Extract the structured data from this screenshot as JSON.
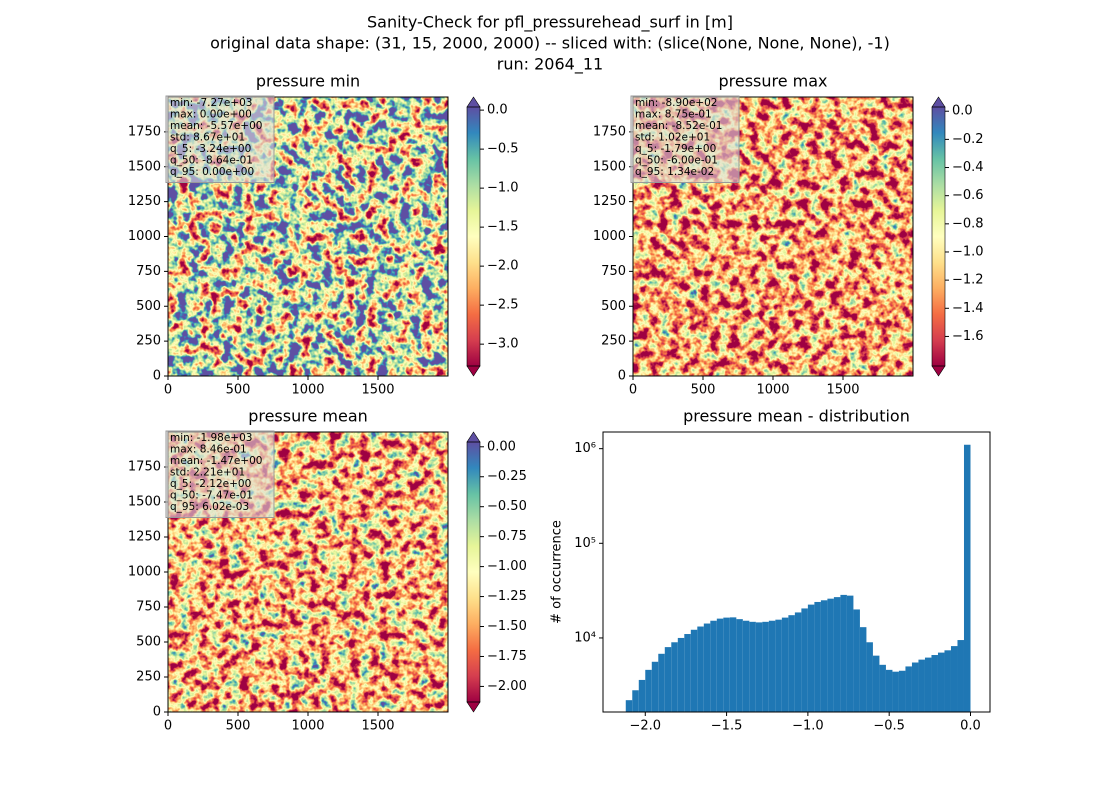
{
  "figure_title": [
    "Sanity-Check for pfl_pressurehead_surf in [m]",
    "original data shape: (31, 15, 2000, 2000) -- sliced with: (slice(None, None, None), -1)",
    "run: 2064_11"
  ],
  "chart_data": [
    {
      "type": "heatmap",
      "title": "pressure min",
      "xlim": [
        0,
        2000
      ],
      "ylim": [
        0,
        2000
      ],
      "xticks": [
        0,
        500,
        1000,
        1500
      ],
      "yticks": [
        0,
        250,
        500,
        750,
        1000,
        1250,
        1500,
        1750
      ],
      "cmap": "Spectral",
      "colorbar": {
        "lim": [
          -3.28,
          0.04
        ],
        "extend": "both",
        "ticks": [
          {
            "value": -3,
            "label": "−3.0"
          },
          {
            "value": -2.5,
            "label": "−2.5"
          },
          {
            "value": -2,
            "label": "−2.0"
          },
          {
            "value": -1.5,
            "label": "−1.5"
          },
          {
            "value": -1,
            "label": "−1.0"
          },
          {
            "value": -0.5,
            "label": "−0.5"
          },
          {
            "value": 0,
            "label": "0.0"
          }
        ]
      },
      "stats": [
        "min: -7.27e+03",
        "max: 0.00e+00",
        "mean: -5.57e+00",
        "std: 8.67e+01",
        "q_5: -3.24e+00",
        "q_50: -8.64e-01",
        "q_95: 0.00e+00"
      ]
    },
    {
      "type": "heatmap",
      "title": "pressure max",
      "xlim": [
        0,
        2000
      ],
      "ylim": [
        0,
        2000
      ],
      "xticks": [
        0,
        500,
        1000,
        1500
      ],
      "yticks": [
        0,
        250,
        500,
        750,
        1000,
        1250,
        1500,
        1750
      ],
      "cmap": "Spectral",
      "colorbar": {
        "lim": [
          -1.81,
          0.03
        ],
        "extend": "both",
        "ticks": [
          {
            "value": -1.6,
            "label": "−1.6"
          },
          {
            "value": -1.4,
            "label": "−1.4"
          },
          {
            "value": -1.2,
            "label": "−1.2"
          },
          {
            "value": -1,
            "label": "−1.0"
          },
          {
            "value": -0.8,
            "label": "−0.8"
          },
          {
            "value": -0.6,
            "label": "−0.6"
          },
          {
            "value": -0.4,
            "label": "−0.4"
          },
          {
            "value": -0.2,
            "label": "−0.2"
          },
          {
            "value": 0,
            "label": "0.0"
          }
        ]
      },
      "stats": [
        "min: -8.90e+02",
        "max: 8.75e-01",
        "mean: -8.52e-01",
        "std: 1.02e+01",
        "q_5: -1.79e+00",
        "q_50: -6.00e-01",
        "q_95: 1.34e-02"
      ]
    },
    {
      "type": "heatmap",
      "title": "pressure mean",
      "xlim": [
        0,
        2000
      ],
      "ylim": [
        0,
        2000
      ],
      "xticks": [
        0,
        500,
        1000,
        1500
      ],
      "yticks": [
        0,
        250,
        500,
        750,
        1000,
        1250,
        1500,
        1750
      ],
      "cmap": "Spectral",
      "colorbar": {
        "lim": [
          -2.13,
          0.04
        ],
        "extend": "both",
        "ticks": [
          {
            "value": -2,
            "label": "−2.00"
          },
          {
            "value": -1.75,
            "label": "−1.75"
          },
          {
            "value": -1.5,
            "label": "−1.50"
          },
          {
            "value": -1.25,
            "label": "−1.25"
          },
          {
            "value": -1,
            "label": "−1.00"
          },
          {
            "value": -0.75,
            "label": "−0.75"
          },
          {
            "value": -0.5,
            "label": "−0.50"
          },
          {
            "value": -0.25,
            "label": "−0.25"
          },
          {
            "value": 0,
            "label": "0.00"
          }
        ]
      },
      "stats": [
        "min: -1.98e+03",
        "max: 8.46e-01",
        "mean: -1.47e+00",
        "std: 2.21e+01",
        "q_5: -2.12e+00",
        "q_50: -7.47e-01",
        "q_95: 6.02e-03"
      ]
    },
    {
      "type": "histogram",
      "title": "pressure mean - distribution",
      "ylabel": "# of occurrence",
      "color": "#1f77b4",
      "log_y": true,
      "xlim": [
        -2.26,
        0.12
      ],
      "ylim": [
        1650,
        1500000
      ],
      "xticks": [
        {
          "value": -2,
          "label": "−2.0"
        },
        {
          "value": -1.5,
          "label": "−1.5"
        },
        {
          "value": -1,
          "label": "−1.0"
        },
        {
          "value": -0.5,
          "label": "−0.5"
        },
        {
          "value": 0,
          "label": "0.0"
        }
      ],
      "yticks": [
        {
          "value": 10000,
          "label": "10⁴"
        },
        {
          "value": 100000,
          "label": "10⁵"
        },
        {
          "value": 1000000,
          "label": "10⁶"
        }
      ],
      "bins": [
        -2.12,
        -2.08,
        -2.04,
        -2.0,
        -1.96,
        -1.92,
        -1.88,
        -1.84,
        -1.8,
        -1.76,
        -1.72,
        -1.68,
        -1.64,
        -1.6,
        -1.56,
        -1.52,
        -1.48,
        -1.44,
        -1.4,
        -1.36,
        -1.32,
        -1.28,
        -1.24,
        -1.2,
        -1.16,
        -1.12,
        -1.08,
        -1.04,
        -1.0,
        -0.96,
        -0.92,
        -0.88,
        -0.84,
        -0.8,
        -0.76,
        -0.72,
        -0.68,
        -0.64,
        -0.6,
        -0.56,
        -0.52,
        -0.48,
        -0.44,
        -0.4,
        -0.36,
        -0.32,
        -0.28,
        -0.24,
        -0.2,
        -0.16,
        -0.12,
        -0.08,
        -0.04,
        0.0
      ],
      "values": [
        2200,
        2800,
        3600,
        4600,
        5600,
        6800,
        8000,
        9000,
        10000,
        11000,
        12200,
        13200,
        14200,
        15200,
        16000,
        16400,
        16500,
        15800,
        15200,
        14800,
        14600,
        14800,
        15200,
        15600,
        16400,
        17400,
        18600,
        20500,
        22500,
        24000,
        25000,
        26000,
        27000,
        28500,
        28000,
        20000,
        13000,
        9000,
        6500,
        5200,
        4600,
        4400,
        4500,
        5000,
        5500,
        5900,
        6200,
        6600,
        7000,
        7400,
        8200,
        9500,
        1100000
      ]
    }
  ]
}
